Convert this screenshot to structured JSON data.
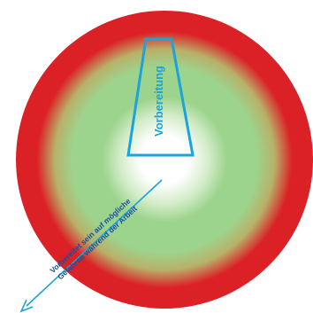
{
  "diagram": {
    "center_label": "Vorbereitung",
    "arrow_label_line1": "Vorbereitet sein auf mögliche",
    "arrow_label_line2": "Gefahren während der Arbeit"
  },
  "colors": {
    "outer_ring": "#dc2126",
    "inner_field": "#9dd48d",
    "center_glow": "#ffffff",
    "accent": "#1aa3dc",
    "text_dark_blue": "#1a4f9c"
  }
}
